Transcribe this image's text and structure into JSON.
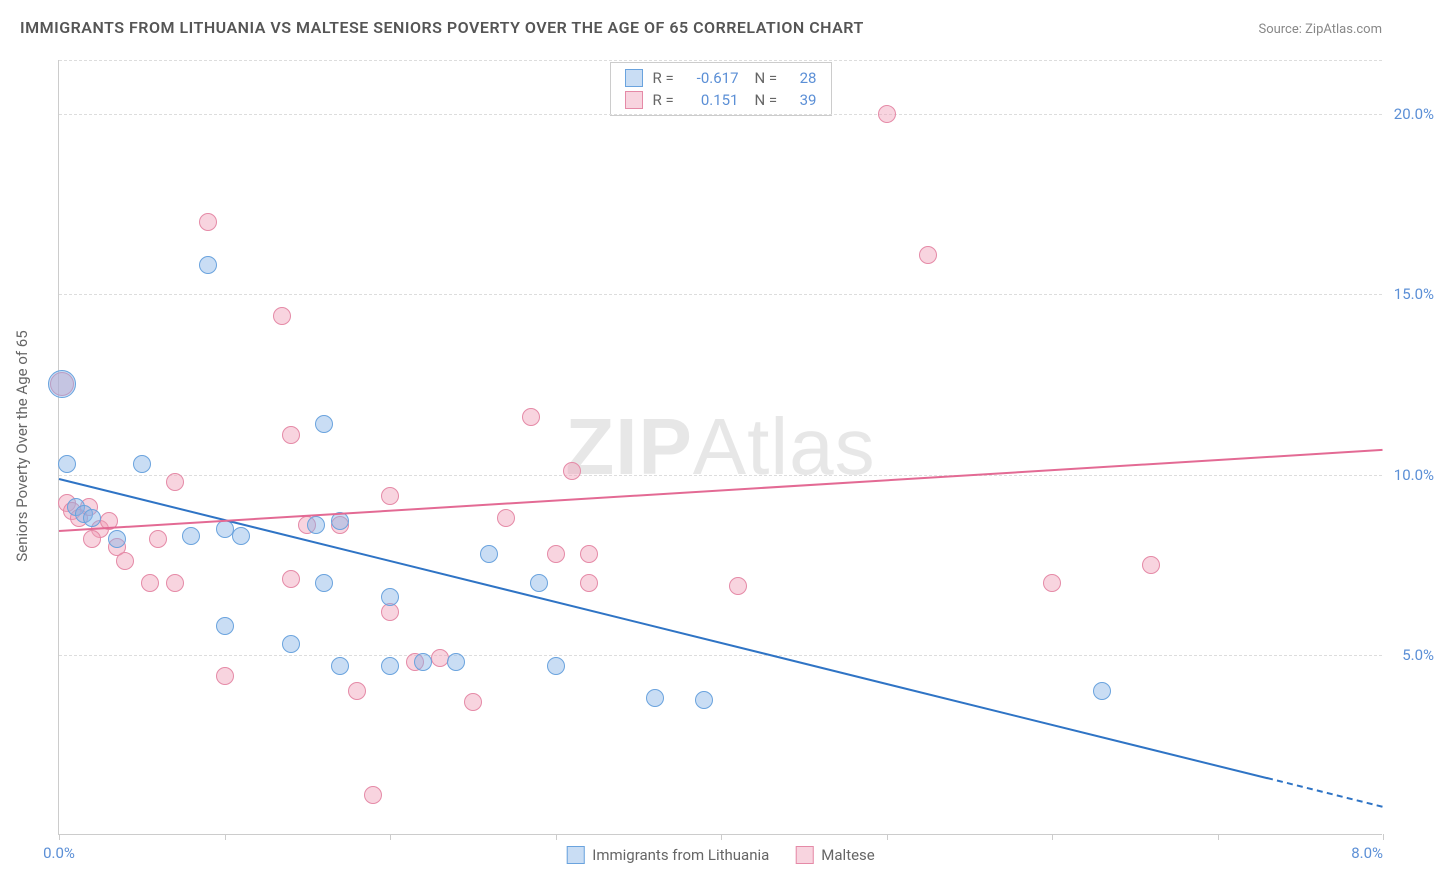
{
  "title": "IMMIGRANTS FROM LITHUANIA VS MALTESE SENIORS POVERTY OVER THE AGE OF 65 CORRELATION CHART",
  "source": "Source: ZipAtlas.com",
  "watermark_bold": "ZIP",
  "watermark_rest": "Atlas",
  "ylabel": "Seniors Poverty Over the Age of 65",
  "chart": {
    "type": "scatter",
    "xlim": [
      0.0,
      8.0
    ],
    "ylim": [
      0.0,
      21.5
    ],
    "xtick_positions": [
      0.0,
      1.0,
      2.0,
      3.0,
      4.0,
      5.0,
      6.0,
      7.0,
      8.0
    ],
    "xtick_labels": {
      "left": "0.0%",
      "right": "8.0%"
    },
    "ytick_positions": [
      5.0,
      10.0,
      15.0,
      20.0
    ],
    "ytick_labels": [
      "5.0%",
      "10.0%",
      "15.0%",
      "20.0%"
    ],
    "grid_color": "#dddddd",
    "background_color": "#ffffff",
    "series": [
      {
        "name": "Immigrants from Lithuania",
        "fill": "rgba(135,180,230,0.45)",
        "stroke": "#6aa3de",
        "marker_r": 9,
        "R": "-0.617",
        "N": "28",
        "trend": {
          "x1": 0.0,
          "y1": 9.9,
          "x2": 7.3,
          "y2": 1.6,
          "dash_from_x": 7.3,
          "x2d": 8.0,
          "y2d": 0.8,
          "color": "#2f74c5"
        },
        "points": [
          [
            0.02,
            12.5,
            14
          ],
          [
            0.05,
            10.3
          ],
          [
            0.1,
            9.1
          ],
          [
            0.15,
            8.9
          ],
          [
            0.2,
            8.8
          ],
          [
            0.35,
            8.2
          ],
          [
            0.5,
            10.3
          ],
          [
            0.8,
            8.3
          ],
          [
            0.9,
            15.8
          ],
          [
            1.0,
            5.8
          ],
          [
            1.0,
            8.5
          ],
          [
            1.1,
            8.3
          ],
          [
            1.4,
            5.3
          ],
          [
            1.6,
            11.4
          ],
          [
            1.55,
            8.6
          ],
          [
            1.6,
            7.0
          ],
          [
            1.7,
            8.7
          ],
          [
            1.7,
            4.7
          ],
          [
            2.0,
            6.6
          ],
          [
            2.0,
            4.7
          ],
          [
            2.2,
            4.8
          ],
          [
            2.4,
            4.8
          ],
          [
            2.6,
            7.8
          ],
          [
            2.9,
            7.0
          ],
          [
            3.0,
            4.7
          ],
          [
            3.6,
            3.8
          ],
          [
            3.9,
            3.75
          ],
          [
            6.3,
            4.0
          ]
        ]
      },
      {
        "name": "Maltese",
        "fill": "rgba(240,160,185,0.45)",
        "stroke": "#e58aa7",
        "marker_r": 9,
        "R": "0.151",
        "N": "39",
        "trend": {
          "x1": 0.0,
          "y1": 8.45,
          "x2": 8.0,
          "y2": 10.7,
          "color": "#e36a94"
        },
        "points": [
          [
            0.02,
            12.5,
            12
          ],
          [
            0.05,
            9.2
          ],
          [
            0.08,
            9.0
          ],
          [
            0.12,
            8.8
          ],
          [
            0.18,
            9.1
          ],
          [
            0.25,
            8.5
          ],
          [
            0.3,
            8.7
          ],
          [
            0.35,
            8.0
          ],
          [
            0.4,
            7.6
          ],
          [
            0.55,
            7.0
          ],
          [
            0.7,
            7.0
          ],
          [
            0.7,
            9.8
          ],
          [
            0.9,
            17.0
          ],
          [
            1.0,
            4.4
          ],
          [
            1.35,
            14.4
          ],
          [
            1.4,
            11.1
          ],
          [
            1.4,
            7.1
          ],
          [
            1.5,
            8.6
          ],
          [
            1.7,
            8.6
          ],
          [
            1.8,
            4.0
          ],
          [
            1.9,
            1.1
          ],
          [
            2.0,
            6.2
          ],
          [
            2.0,
            9.4
          ],
          [
            2.15,
            4.8
          ],
          [
            2.3,
            4.9
          ],
          [
            2.5,
            3.7
          ],
          [
            2.7,
            8.8
          ],
          [
            2.85,
            11.6
          ],
          [
            3.0,
            7.8
          ],
          [
            3.1,
            10.1
          ],
          [
            3.2,
            7.8
          ],
          [
            3.2,
            7.0
          ],
          [
            4.1,
            6.9
          ],
          [
            5.0,
            20.0
          ],
          [
            5.25,
            16.1
          ],
          [
            6.0,
            7.0
          ],
          [
            6.6,
            7.5
          ],
          [
            0.6,
            8.2
          ],
          [
            0.2,
            8.2
          ]
        ]
      }
    ]
  }
}
